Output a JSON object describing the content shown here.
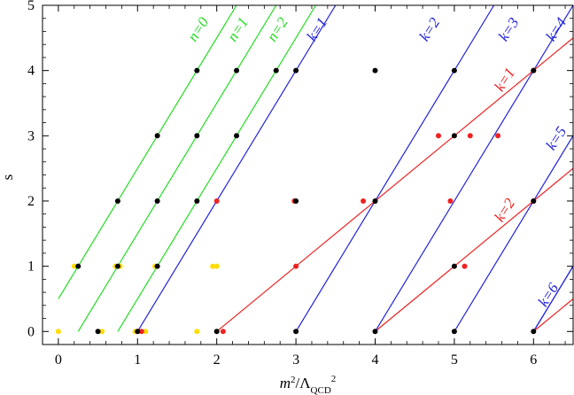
{
  "chart_data": {
    "type": "line",
    "xlabel": "m²/Λ_QCD²",
    "ylabel": "s",
    "xlim": [
      -0.2,
      6.5
    ],
    "ylim": [
      -0.2,
      5
    ],
    "x_ticks": [
      "0",
      "1",
      "2",
      "3",
      "4",
      "5",
      "6"
    ],
    "y_ticks": [
      "0",
      "1",
      "2",
      "3",
      "4",
      "5"
    ],
    "grid": false,
    "colors": {
      "green": "#22dd22",
      "blue": "#2222dd",
      "red": "#ee2222",
      "black": "#000000",
      "yellow": "#ffdd00"
    },
    "lines": [
      {
        "label": "n=0",
        "color": "green",
        "points": [
          [
            0,
            0.5
          ],
          [
            2.25,
            5
          ]
        ]
      },
      {
        "label": "n=1",
        "color": "green",
        "points": [
          [
            0.25,
            0
          ],
          [
            2.75,
            5
          ]
        ]
      },
      {
        "label": "n=2",
        "color": "green",
        "points": [
          [
            0.75,
            0
          ],
          [
            3.25,
            5
          ]
        ]
      },
      {
        "label": "k=1",
        "color": "blue",
        "points": [
          [
            1,
            0
          ],
          [
            3.5,
            5
          ]
        ]
      },
      {
        "label": "k=2",
        "color": "blue",
        "points": [
          [
            3,
            0
          ],
          [
            5.5,
            5
          ]
        ]
      },
      {
        "label": "k=3",
        "color": "blue",
        "points": [
          [
            4,
            0
          ],
          [
            6.5,
            5
          ]
        ]
      },
      {
        "label": "k=4",
        "color": "blue",
        "points": [
          [
            5,
            0
          ],
          [
            6.5,
            3
          ]
        ]
      },
      {
        "label": "k=5",
        "color": "blue",
        "points": [
          [
            6,
            0
          ],
          [
            6.5,
            1
          ]
        ]
      },
      {
        "label": "k=6",
        "color": "blue",
        "points": [
          [
            6,
            0
          ],
          [
            6.5,
            1
          ]
        ]
      },
      {
        "label": "k=1",
        "color": "red",
        "points": [
          [
            2,
            0
          ],
          [
            6.5,
            4.5
          ]
        ]
      },
      {
        "label": "k=2",
        "color": "red",
        "points": [
          [
            4,
            0
          ],
          [
            6.5,
            2.5
          ]
        ]
      },
      {
        "label": "",
        "color": "red",
        "points": [
          [
            6,
            0
          ],
          [
            6.5,
            0.5
          ]
        ]
      }
    ],
    "line_labels": [
      {
        "text": "n=0",
        "color": "green",
        "at": [
          1.78,
          4.62
        ]
      },
      {
        "text": "n=1",
        "color": "green",
        "at": [
          2.28,
          4.62
        ]
      },
      {
        "text": "n=2",
        "color": "green",
        "at": [
          2.78,
          4.62
        ]
      },
      {
        "text": "k=1",
        "color": "blue",
        "at": [
          3.28,
          4.62
        ]
      },
      {
        "text": "k=2",
        "color": "blue",
        "at": [
          4.7,
          4.62
        ]
      },
      {
        "text": "k=3",
        "color": "blue",
        "at": [
          5.7,
          4.62
        ]
      },
      {
        "text": "k=4",
        "color": "blue",
        "at": [
          6.3,
          4.62
        ]
      },
      {
        "text": "k=5",
        "color": "blue",
        "at": [
          6.3,
          2.95
        ]
      },
      {
        "text": "k=6",
        "color": "blue",
        "at": [
          6.2,
          0.55
        ]
      },
      {
        "text": "k=1",
        "color": "red",
        "at": [
          5.65,
          3.85
        ]
      },
      {
        "text": "k=2",
        "color": "red",
        "at": [
          5.65,
          1.85
        ]
      }
    ],
    "points": {
      "black": [
        [
          1.75,
          4
        ],
        [
          2.25,
          4
        ],
        [
          2.75,
          4
        ],
        [
          3,
          4
        ],
        [
          4,
          4
        ],
        [
          5,
          4
        ],
        [
          6,
          4
        ],
        [
          1.25,
          3
        ],
        [
          1.75,
          3
        ],
        [
          2.25,
          3
        ],
        [
          5,
          3
        ],
        [
          0.75,
          2
        ],
        [
          1.25,
          2
        ],
        [
          1.75,
          2
        ],
        [
          3,
          2
        ],
        [
          4,
          2
        ],
        [
          6,
          2
        ],
        [
          0.25,
          1
        ],
        [
          0.75,
          1
        ],
        [
          1.25,
          1
        ],
        [
          5,
          1
        ],
        [
          0.5,
          0
        ],
        [
          1,
          0
        ],
        [
          2,
          0
        ],
        [
          3,
          0
        ],
        [
          4,
          0
        ],
        [
          5,
          0
        ],
        [
          6,
          0
        ]
      ],
      "red": [
        [
          6,
          4
        ],
        [
          4.8,
          3
        ],
        [
          5.2,
          3
        ],
        [
          5.55,
          3
        ],
        [
          2,
          2
        ],
        [
          2.98,
          2
        ],
        [
          3.85,
          2
        ],
        [
          4,
          2
        ],
        [
          4.95,
          2
        ],
        [
          6,
          2
        ],
        [
          3,
          1
        ],
        [
          5.13,
          1
        ],
        [
          1.05,
          0
        ],
        [
          2.08,
          0
        ]
      ],
      "yellow": [
        [
          0.2,
          1
        ],
        [
          0.72,
          1
        ],
        [
          0.78,
          1
        ],
        [
          1.22,
          1
        ],
        [
          1.95,
          1
        ],
        [
          2.0,
          1
        ],
        [
          0,
          0
        ],
        [
          0.55,
          0
        ],
        [
          0.97,
          0
        ],
        [
          1.1,
          0
        ],
        [
          1.75,
          0
        ]
      ]
    }
  }
}
